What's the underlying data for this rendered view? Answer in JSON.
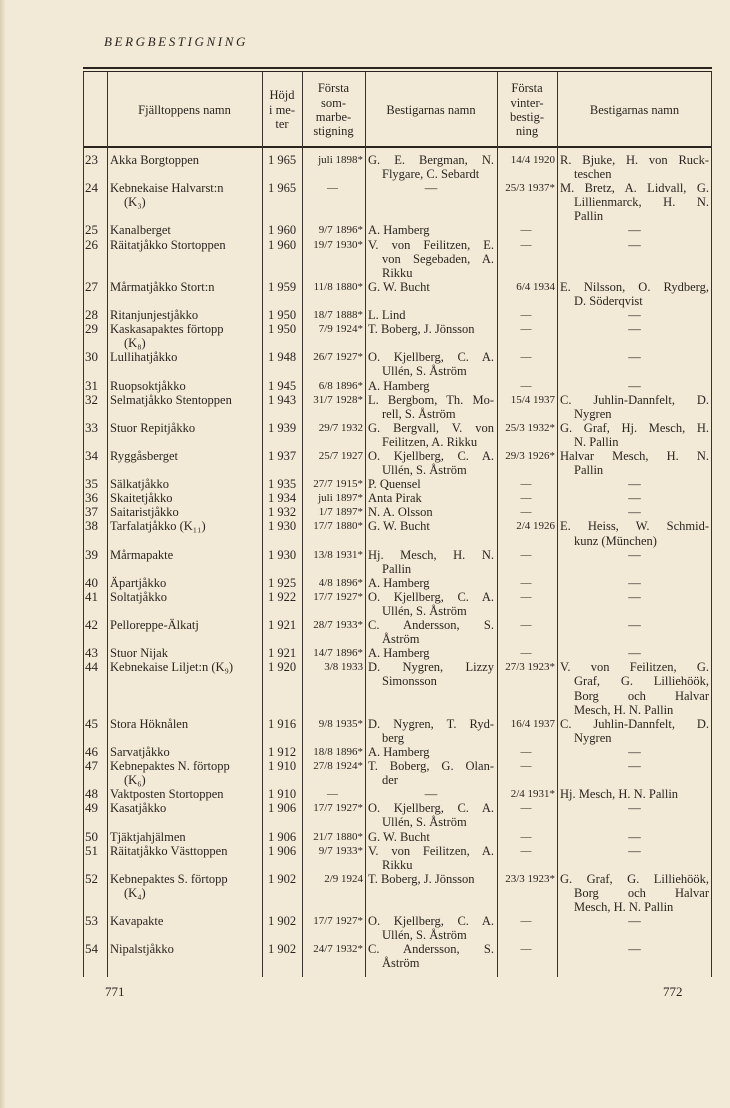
{
  "running_head": "BERGBESTIGNING",
  "header": {
    "name": "Fjälltoppens namn",
    "height": "Höjd\ni me-\nter",
    "summer": "Första\nsom-\nmarbe-\nstigning",
    "summer_climbers": "Bestigarnas namn",
    "winter": "Första\nvinter-\nbestig-\nning",
    "winter_climbers": "Bestigarnas namn"
  },
  "rows": [
    [
      "23",
      "Akka Borgtoppen",
      "1 965",
      "juli 1898*",
      "G. E. Bergman, N.\nFlygare, C. Sebardt",
      "14/4 1920",
      "R. Bjuke, H. von Ruck-\nteschen"
    ],
    [
      "24",
      "Kebnekaise Halvarst:n\n(K₃)",
      "1 965",
      "—",
      "—",
      "25/3 1937*",
      "M. Bretz, A. Lidvall, G.\nLillienmarck, H. N.\nPallin"
    ],
    [
      "25",
      "Kanalberget",
      "1 960",
      "9/7 1896*",
      "A. Hamberg",
      "—",
      "—"
    ],
    [
      "26",
      "Räitatjåkko Stortoppen",
      "1 960",
      "19/7 1930*",
      "V. von Feilitzen, E.\nvon Segebaden, A.\nRikku",
      "—",
      "—"
    ],
    [
      "27",
      "Mårmatjåkko Stort:n",
      "1 959",
      "11/8 1880*",
      "G. W. Bucht",
      "6/4 1934",
      "E. Nilsson, O. Rydberg,\nD. Söderqvist"
    ],
    [
      "28",
      "Ritanjunjestjåkko",
      "1 950",
      "18/7 1888*",
      "L. Lind",
      "—",
      "—"
    ],
    [
      "29",
      "Kaskasapaktes förtopp\n(K₈)",
      "1 950",
      "7/9 1924*",
      "T. Boberg, J. Jönsson",
      "—",
      "—"
    ],
    [
      "30",
      "Lullihatjåkko",
      "1 948",
      "26/7 1927*",
      "O. Kjellberg, C. A.\nUllén, S. Åström",
      "—",
      "—"
    ],
    [
      "31",
      "Ruopsoktjåkko",
      "1 945",
      "6/8 1896*",
      "A. Hamberg",
      "—",
      "—"
    ],
    [
      "32",
      "Selmatjåkko Stentoppen",
      "1 943",
      "31/7 1928*",
      "L. Bergbom, Th. Mo-\nrell, S. Åström",
      "15/4 1937",
      "C. Juhlin-Dannfelt, D.\nNygren"
    ],
    [
      "33",
      "Stuor Repitjåkko",
      "1 939",
      "29/7 1932",
      "G. Bergvall, V. von\nFeilitzen, A. Rikku",
      "25/3 1932*",
      "G. Graf, Hj. Mesch, H.\nN. Pallin"
    ],
    [
      "34",
      "Ryggåsberget",
      "1 937",
      "25/7 1927",
      "O. Kjellberg, C. A.\nUllén, S. Åström",
      "29/3 1926*",
      "Halvar Mesch, H. N.\nPallin"
    ],
    [
      "35",
      "Sälkatjåkko",
      "1 935",
      "27/7 1915*",
      "P. Quensel",
      "—",
      "—"
    ],
    [
      "36",
      "Skaitetjåkko",
      "1 934",
      "juli 1897*",
      "Anta Pirak",
      "—",
      "—"
    ],
    [
      "37",
      "Saitaristjåkko",
      "1 932",
      "1/7 1897*",
      "N. A. Olsson",
      "—",
      "—"
    ],
    [
      "38",
      "Tarfalatjåkko (K₁₁)",
      "1 930",
      "17/7 1880*",
      "G. W. Bucht",
      "2/4 1926",
      "E. Heiss, W. Schmid-\nkunz (München)"
    ],
    [
      "39",
      "Mårmapakte",
      "1 930",
      "13/8 1931*",
      "Hj. Mesch, H. N.\nPallin",
      "—",
      "—"
    ],
    [
      "40",
      "Äpartjåkko",
      "1 925",
      "4/8 1896*",
      "A. Hamberg",
      "—",
      "—"
    ],
    [
      "41",
      "Soltatjåkko",
      "1 922",
      "17/7 1927*",
      "O. Kjellberg, C. A.\nUllén, S. Åström",
      "—",
      "—"
    ],
    [
      "42",
      "Pelloreppe-Älkatj",
      "1 921",
      "28/7 1933*",
      "C. Andersson, S.\nÅström",
      "—",
      "—"
    ],
    [
      "43",
      "Stuor Nijak",
      "1 921",
      "14/7 1896*",
      "A. Hamberg",
      "—",
      "—"
    ],
    [
      "44",
      "Kebnekaise Liljet:n (K₉)",
      "1 920",
      "3/8 1933",
      "D. Nygren, Lizzy\nSimonsson",
      "27/3 1923*",
      "V. von Feilitzen, G.\nGraf, G. Lilliehöök,\nBorg och Halvar\nMesch, H. N. Pallin"
    ],
    [
      "45",
      "Stora Höknålen",
      "1 916",
      "9/8 1935*",
      "D. Nygren, T. Ryd-\nberg",
      "16/4 1937",
      "C. Juhlin-Dannfelt, D.\nNygren"
    ],
    [
      "46",
      "Sarvatjåkko",
      "1 912",
      "18/8 1896*",
      "A. Hamberg",
      "—",
      "—"
    ],
    [
      "47",
      "Kebnepaktes N. förtopp\n(K₆)",
      "1 910",
      "27/8 1924*",
      "T. Boberg, G. Olan-\nder",
      "—",
      "—"
    ],
    [
      "48",
      "Vaktposten Stortoppen",
      "1 910",
      "—",
      "—",
      "2/4 1931*",
      "Hj. Mesch, H. N. Pallin"
    ],
    [
      "49",
      "Kasatjåkko",
      "1 906",
      "17/7 1927*",
      "O. Kjellberg, C. A.\nUllén, S. Åström",
      "—",
      "—"
    ],
    [
      "50",
      "Tjäktjahjälmen",
      "1 906",
      "21/7 1880*",
      "G. W. Bucht",
      "—",
      "—"
    ],
    [
      "51",
      "Räitatjåkko Västtoppen",
      "1 906",
      "9/7 1933*",
      "V. von Feilitzen, A.\nRikku",
      "—",
      "—"
    ],
    [
      "52",
      "Kebnepaktes S. förtopp\n(K₄)",
      "1 902",
      "2/9 1924",
      "T. Boberg, J. Jönsson",
      "23/3 1923*",
      "G. Graf, G. Lilliehöök,\nBorg och Halvar\nMesch, H. N. Pallin"
    ],
    [
      "53",
      "Kavapakte",
      "1 902",
      "17/7 1927*",
      "O. Kjellberg, C. A.\nUllén, S. Åström",
      "—",
      "—"
    ],
    [
      "54",
      "Nipalstjåkko",
      "1 902",
      "24/7 1932*",
      "C. Andersson, S.\nÅström",
      "—",
      "—"
    ]
  ],
  "footer": {
    "left_page": "771",
    "right_page": "772"
  }
}
